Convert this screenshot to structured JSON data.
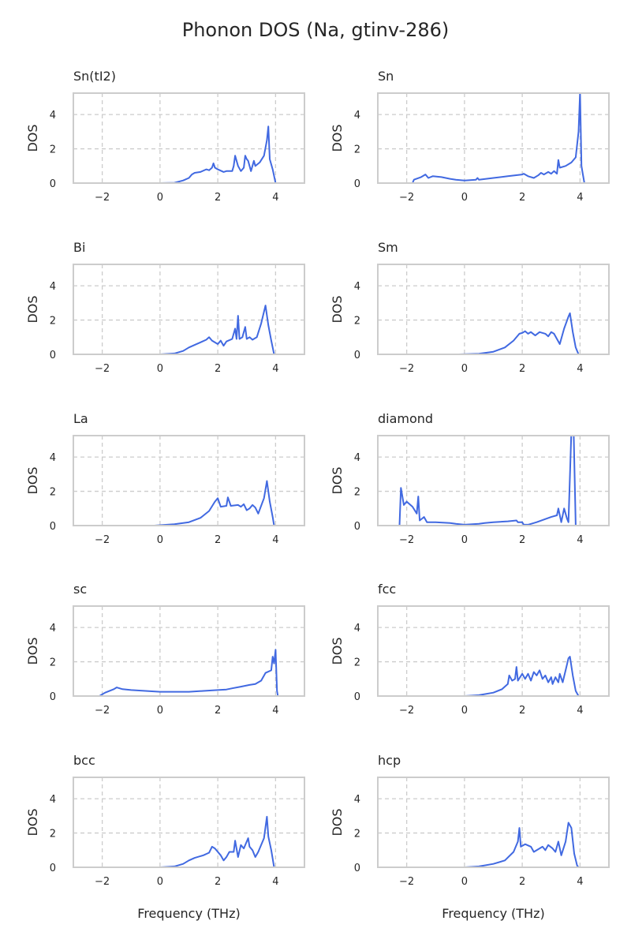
{
  "title": "Phonon DOS (Na, gtinv-286)",
  "colors": {
    "line": "#4169e1",
    "spine": "#cccccc",
    "grid": "#cccccc"
  },
  "chart_data": [
    {
      "type": "line",
      "title": "Sn(tI2)",
      "ylabel": "DOS",
      "xlabel": "",
      "xlim": [
        -3,
        5
      ],
      "ylim": [
        0,
        5.25
      ],
      "xticks": [
        -2,
        0,
        2,
        4
      ],
      "yticks": [
        0,
        2,
        4
      ],
      "grid": true,
      "x": [
        0,
        0.5,
        0.8,
        1.0,
        1.1,
        1.2,
        1.4,
        1.6,
        1.7,
        1.8,
        1.85,
        1.9,
        2.0,
        2.2,
        2.3,
        2.5,
        2.55,
        2.6,
        2.7,
        2.8,
        2.9,
        2.95,
        3.0,
        3.05,
        3.15,
        3.25,
        3.3,
        3.45,
        3.6,
        3.7,
        3.75,
        3.8,
        3.9,
        4.0
      ],
      "y": [
        0,
        0.02,
        0.15,
        0.3,
        0.5,
        0.6,
        0.65,
        0.8,
        0.75,
        0.9,
        1.15,
        0.9,
        0.8,
        0.65,
        0.7,
        0.7,
        1.0,
        1.6,
        1.0,
        0.7,
        0.9,
        1.6,
        1.4,
        1.3,
        0.7,
        1.3,
        1.0,
        1.2,
        1.6,
        2.5,
        3.3,
        1.4,
        0.8,
        0
      ]
    },
    {
      "type": "line",
      "title": "Sn",
      "ylabel": "DOS",
      "xlabel": "",
      "xlim": [
        -3,
        5
      ],
      "ylim": [
        0,
        5.25
      ],
      "xticks": [
        -2,
        0,
        2,
        4
      ],
      "yticks": [
        0,
        2,
        4
      ],
      "grid": true,
      "x": [
        -1.8,
        -1.75,
        -1.5,
        -1.35,
        -1.25,
        -1.1,
        -0.8,
        -0.5,
        -0.3,
        0,
        0.4,
        0.45,
        0.5,
        1.0,
        1.5,
        2.0,
        2.05,
        2.2,
        2.4,
        2.55,
        2.65,
        2.75,
        2.9,
        3.0,
        3.1,
        3.2,
        3.25,
        3.3,
        3.5,
        3.7,
        3.85,
        3.95,
        4.0,
        4.05,
        4.1,
        4.15
      ],
      "y": [
        0,
        0.2,
        0.35,
        0.5,
        0.3,
        0.4,
        0.35,
        0.25,
        0.2,
        0.15,
        0.2,
        0.3,
        0.2,
        0.3,
        0.4,
        0.5,
        0.55,
        0.4,
        0.3,
        0.45,
        0.6,
        0.5,
        0.65,
        0.55,
        0.7,
        0.55,
        1.35,
        0.9,
        1.0,
        1.2,
        1.5,
        3.0,
        5.3,
        1.0,
        0.5,
        0
      ]
    },
    {
      "type": "line",
      "title": "Bi",
      "ylabel": "DOS",
      "xlabel": "",
      "xlim": [
        -3,
        5
      ],
      "ylim": [
        0,
        5.25
      ],
      "xticks": [
        -2,
        0,
        2,
        4
      ],
      "yticks": [
        0,
        2,
        4
      ],
      "grid": true,
      "x": [
        0,
        0.5,
        0.8,
        1.0,
        1.2,
        1.4,
        1.6,
        1.7,
        1.8,
        2.0,
        2.1,
        2.2,
        2.3,
        2.5,
        2.6,
        2.65,
        2.7,
        2.75,
        2.85,
        2.95,
        3.0,
        3.1,
        3.2,
        3.35,
        3.5,
        3.65,
        3.75,
        3.85,
        3.95
      ],
      "y": [
        0,
        0.05,
        0.2,
        0.4,
        0.55,
        0.7,
        0.85,
        1.0,
        0.8,
        0.6,
        0.8,
        0.5,
        0.75,
        0.9,
        1.5,
        0.9,
        2.25,
        0.9,
        1.0,
        1.6,
        0.9,
        1.0,
        0.85,
        1.0,
        1.8,
        2.85,
        1.7,
        0.8,
        0
      ]
    },
    {
      "type": "line",
      "title": "Sm",
      "ylabel": "DOS",
      "xlabel": "",
      "xlim": [
        -3,
        5
      ],
      "ylim": [
        0,
        5.25
      ],
      "xticks": [
        -2,
        0,
        2,
        4
      ],
      "yticks": [
        0,
        2,
        4
      ],
      "grid": true,
      "x": [
        -0.2,
        0.5,
        1.0,
        1.4,
        1.7,
        1.9,
        2.0,
        2.1,
        2.2,
        2.3,
        2.45,
        2.6,
        2.8,
        2.9,
        3.0,
        3.1,
        3.3,
        3.45,
        3.6,
        3.65,
        3.75,
        3.85,
        3.95
      ],
      "y": [
        0,
        0.03,
        0.15,
        0.4,
        0.8,
        1.2,
        1.25,
        1.35,
        1.2,
        1.3,
        1.1,
        1.3,
        1.2,
        1.05,
        1.3,
        1.2,
        0.6,
        1.5,
        2.2,
        2.4,
        1.3,
        0.4,
        0
      ]
    },
    {
      "type": "line",
      "title": "La",
      "ylabel": "DOS",
      "xlabel": "",
      "xlim": [
        -3,
        5
      ],
      "ylim": [
        0,
        5.25
      ],
      "xticks": [
        -2,
        0,
        2,
        4
      ],
      "yticks": [
        0,
        2,
        4
      ],
      "grid": true,
      "x": [
        -0.2,
        0.5,
        1.0,
        1.4,
        1.7,
        1.9,
        2.0,
        2.1,
        2.3,
        2.35,
        2.45,
        2.7,
        2.8,
        2.9,
        3.0,
        3.1,
        3.2,
        3.3,
        3.4,
        3.6,
        3.7,
        3.8,
        3.9,
        3.95
      ],
      "y": [
        0,
        0.08,
        0.2,
        0.45,
        0.85,
        1.4,
        1.6,
        1.1,
        1.15,
        1.65,
        1.15,
        1.2,
        1.1,
        1.25,
        0.9,
        1.0,
        1.2,
        1.05,
        0.7,
        1.6,
        2.6,
        1.4,
        0.5,
        0
      ]
    },
    {
      "type": "line",
      "title": "diamond",
      "ylabel": "DOS",
      "xlabel": "",
      "xlim": [
        -3,
        5
      ],
      "ylim": [
        0,
        5.25
      ],
      "xticks": [
        -2,
        0,
        2,
        4
      ],
      "yticks": [
        0,
        2,
        4
      ],
      "grid": true,
      "x": [
        -2.8,
        -2.25,
        -2.2,
        -2.1,
        -2.0,
        -1.8,
        -1.65,
        -1.6,
        -1.55,
        -1.4,
        -1.3,
        -1.0,
        -0.5,
        -0.3,
        0,
        0.5,
        0.7,
        1.0,
        1.5,
        1.8,
        1.85,
        2.0,
        2.05,
        2.2,
        2.5,
        3.0,
        3.2,
        3.25,
        3.35,
        3.45,
        3.55,
        3.6,
        3.7,
        3.78,
        3.85,
        4.4
      ],
      "y": [
        0,
        0,
        2.2,
        1.2,
        1.4,
        1.1,
        0.7,
        1.7,
        0.3,
        0.5,
        0.2,
        0.2,
        0.15,
        0.1,
        0.05,
        0.1,
        0.15,
        0.2,
        0.25,
        0.3,
        0.2,
        0.2,
        0.05,
        0.05,
        0.2,
        0.5,
        0.6,
        1.0,
        0.2,
        1.0,
        0.4,
        0.2,
        5.5,
        5.5,
        0,
        0
      ]
    },
    {
      "type": "line",
      "title": "sc",
      "ylabel": "DOS",
      "xlabel": "",
      "xlim": [
        -3,
        5
      ],
      "ylim": [
        0,
        5.25
      ],
      "xticks": [
        -2,
        0,
        2,
        4
      ],
      "yticks": [
        0,
        2,
        4
      ],
      "grid": true,
      "x": [
        -2.1,
        -1.9,
        -1.6,
        -1.5,
        -1.3,
        -1.0,
        0,
        1.0,
        1.5,
        2.0,
        2.3,
        2.5,
        2.8,
        3.1,
        3.3,
        3.5,
        3.65,
        3.85,
        3.9,
        3.95,
        4.0,
        4.05,
        4.08
      ],
      "y": [
        0,
        0.2,
        0.4,
        0.5,
        0.4,
        0.35,
        0.25,
        0.25,
        0.3,
        0.35,
        0.38,
        0.45,
        0.55,
        0.65,
        0.7,
        0.9,
        1.35,
        1.5,
        2.3,
        1.9,
        2.7,
        0.3,
        0
      ]
    },
    {
      "type": "line",
      "title": "fcc",
      "ylabel": "DOS",
      "xlabel": "",
      "xlim": [
        -3,
        5
      ],
      "ylim": [
        0,
        5.25
      ],
      "xticks": [
        -2,
        0,
        2,
        4
      ],
      "yticks": [
        0,
        2,
        4
      ],
      "grid": true,
      "x": [
        0,
        0.5,
        1.0,
        1.3,
        1.5,
        1.55,
        1.65,
        1.75,
        1.8,
        1.85,
        2.0,
        2.1,
        2.2,
        2.3,
        2.4,
        2.5,
        2.6,
        2.7,
        2.8,
        2.9,
        3.0,
        3.05,
        3.15,
        3.25,
        3.3,
        3.4,
        3.5,
        3.6,
        3.65,
        3.75,
        3.85,
        3.95
      ],
      "y": [
        0,
        0.05,
        0.2,
        0.4,
        0.7,
        1.2,
        0.9,
        1.0,
        1.7,
        0.9,
        1.3,
        1.0,
        1.3,
        0.9,
        1.4,
        1.2,
        1.5,
        1.0,
        1.2,
        0.8,
        1.1,
        0.7,
        1.1,
        0.8,
        1.3,
        0.8,
        1.5,
        2.2,
        2.3,
        1.2,
        0.3,
        0
      ]
    },
    {
      "type": "line",
      "title": "bcc",
      "ylabel": "DOS",
      "xlabel": "Frequency (THz)",
      "xlim": [
        -3,
        5
      ],
      "ylim": [
        0,
        5.25
      ],
      "xticks": [
        -2,
        0,
        2,
        4
      ],
      "yticks": [
        0,
        2,
        4
      ],
      "grid": true,
      "x": [
        0,
        0.5,
        0.8,
        1.0,
        1.2,
        1.5,
        1.7,
        1.8,
        1.9,
        2.1,
        2.2,
        2.3,
        2.4,
        2.55,
        2.6,
        2.7,
        2.8,
        2.9,
        3.05,
        3.1,
        3.2,
        3.3,
        3.4,
        3.6,
        3.7,
        3.75,
        3.85,
        3.9,
        3.95
      ],
      "y": [
        0,
        0.05,
        0.2,
        0.4,
        0.55,
        0.7,
        0.85,
        1.2,
        1.1,
        0.7,
        0.4,
        0.6,
        0.9,
        0.9,
        1.55,
        0.6,
        1.3,
        1.1,
        1.7,
        1.2,
        1.0,
        0.6,
        0.9,
        1.7,
        2.95,
        1.8,
        1.0,
        0.5,
        0
      ]
    },
    {
      "type": "line",
      "title": "hcp",
      "ylabel": "DOS",
      "xlabel": "Frequency (THz)",
      "xlim": [
        -3,
        5
      ],
      "ylim": [
        0,
        5.25
      ],
      "xticks": [
        -2,
        0,
        2,
        4
      ],
      "yticks": [
        0,
        2,
        4
      ],
      "grid": true,
      "x": [
        0,
        0.5,
        1.0,
        1.4,
        1.7,
        1.85,
        1.9,
        1.95,
        2.1,
        2.3,
        2.4,
        2.6,
        2.7,
        2.8,
        2.9,
        3.05,
        3.15,
        3.25,
        3.35,
        3.5,
        3.6,
        3.7,
        3.8,
        3.9,
        3.95
      ],
      "y": [
        0,
        0.05,
        0.2,
        0.4,
        0.9,
        1.5,
        2.3,
        1.2,
        1.35,
        1.2,
        0.9,
        1.1,
        1.2,
        1.0,
        1.3,
        1.1,
        0.9,
        1.5,
        0.7,
        1.5,
        2.6,
        2.3,
        0.8,
        0.1,
        0
      ]
    }
  ]
}
